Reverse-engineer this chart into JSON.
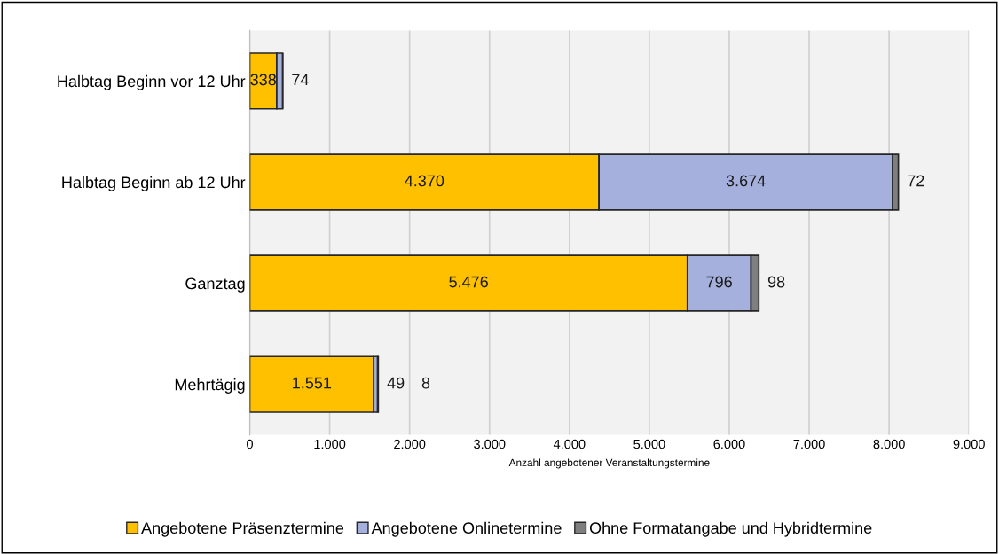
{
  "chart_data": {
    "type": "bar",
    "orientation": "horizontal",
    "stacked": true,
    "categories": [
      "Halbtag Beginn vor 12 Uhr",
      "Halbtag Beginn ab 12 Uhr",
      "Ganztag",
      "Mehrtägig"
    ],
    "series": [
      {
        "name": "Angebotene Präsenztermine",
        "color": "#ffc000",
        "values": [
          338,
          4370,
          5476,
          1551
        ],
        "value_labels": [
          "338",
          "4.370",
          "5.476",
          "1.551"
        ]
      },
      {
        "name": "Angebotene Onlinetermine",
        "color": "#a5b0dc",
        "values": [
          74,
          3674,
          796,
          49
        ],
        "value_labels": [
          "74",
          "3.674",
          "796",
          "49"
        ]
      },
      {
        "name": "Ohne Formatangabe und Hybridtermine",
        "color": "#7f7f7f",
        "values": [
          null,
          72,
          98,
          8
        ],
        "value_labels": [
          null,
          "72",
          "98",
          "8"
        ]
      }
    ],
    "xlabel": "Anzahl angebotener Veranstaltungstermine",
    "xlim": [
      0,
      9000
    ],
    "xticks": [
      0,
      {
        "value": 1000,
        "label": "1.000"
      },
      {
        "value": 2000,
        "label": "2.000"
      },
      {
        "value": 3000,
        "label": "3.000"
      },
      {
        "value": 4000,
        "label": "4.000"
      },
      {
        "value": 5000,
        "label": "5.000"
      },
      {
        "value": 6000,
        "label": "6.000"
      },
      {
        "value": 7000,
        "label": "7.000"
      },
      {
        "value": 8000,
        "label": "8.000"
      },
      {
        "value": 9000,
        "label": "9.000"
      }
    ],
    "grid": "x",
    "legend": "bottom"
  }
}
